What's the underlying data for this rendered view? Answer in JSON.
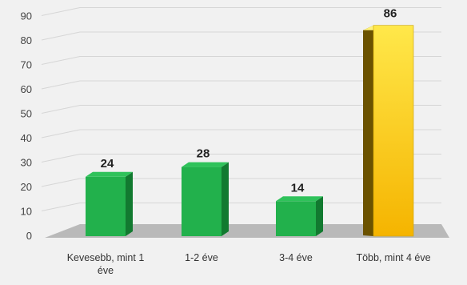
{
  "chart_data": {
    "type": "bar",
    "title": "",
    "xlabel": "",
    "ylabel": "",
    "categories": [
      [
        "Kevesebb, mint 1",
        "éve"
      ],
      [
        "1-2 éve"
      ],
      [
        "3-4 éve"
      ],
      [
        "Több, mint 4 éve"
      ]
    ],
    "values": [
      24,
      28,
      14,
      86
    ],
    "value_labels": [
      "24",
      "28",
      "14",
      "86"
    ],
    "yticks": [
      "0",
      "10",
      "20",
      "30",
      "40",
      "50",
      "60",
      "70",
      "80",
      "90"
    ],
    "ylim": [
      0,
      90
    ],
    "grid": true,
    "legend": "none",
    "three_d": true,
    "colors": {
      "default_front": "#22b14c",
      "default_top": "#2fc25a",
      "default_side": "#127a30",
      "highlight_front_top": "#ffe84a",
      "highlight_front_bottom": "#f5b400",
      "highlight_top": "#fff27a",
      "highlight_side": "#6b5200",
      "grid": "#d6d6d6",
      "floor": "#b9b9b9",
      "background": "#f1f1f1"
    },
    "highlight_index": 3
  }
}
